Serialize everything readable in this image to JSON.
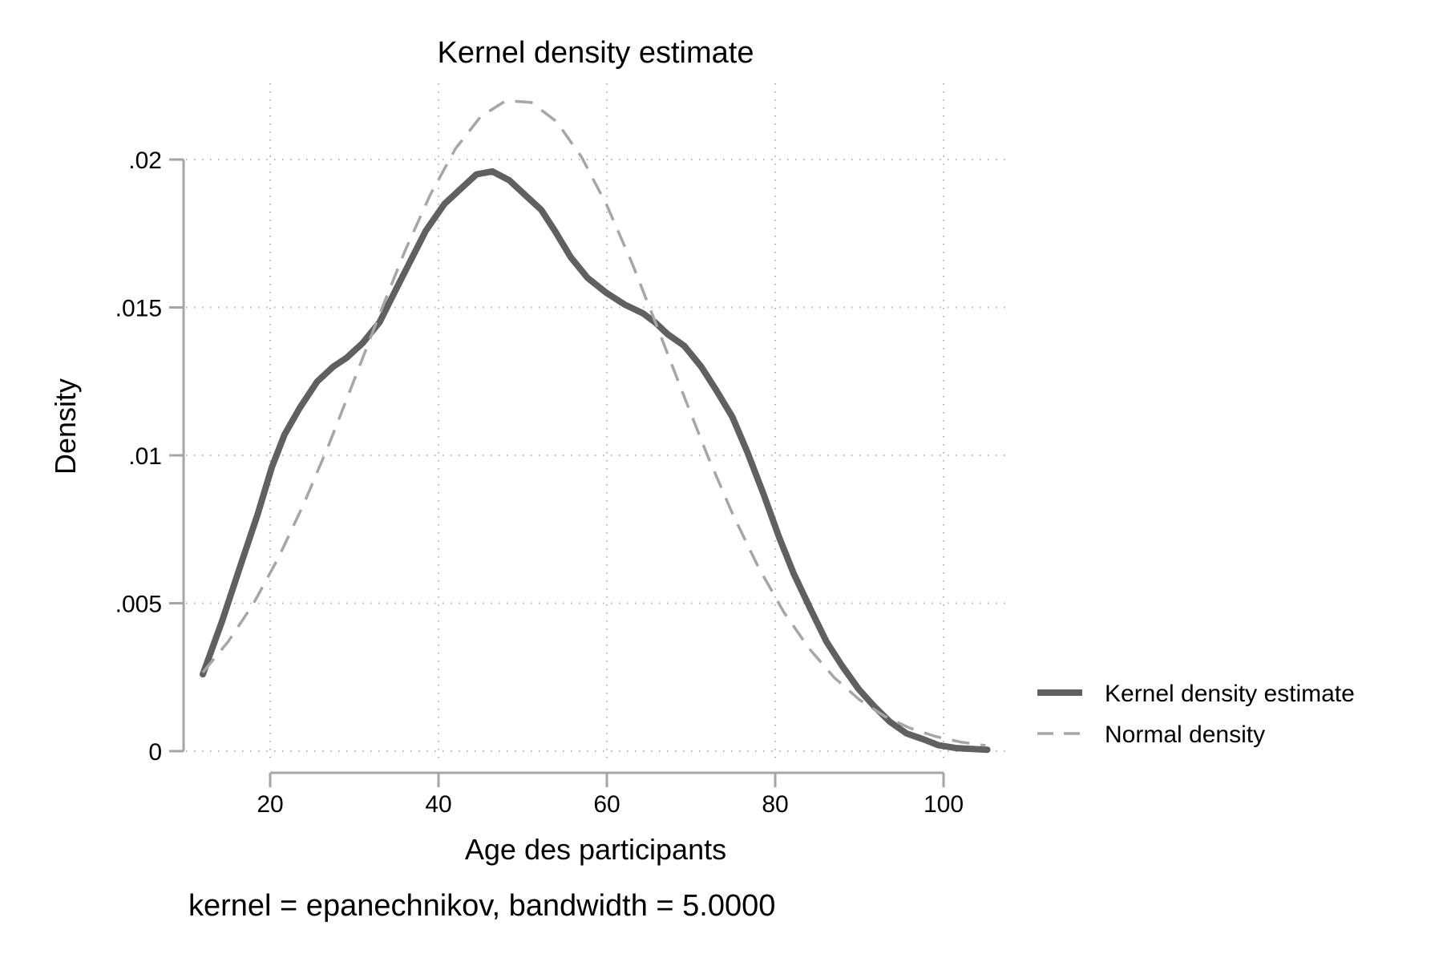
{
  "chart_data": {
    "type": "line",
    "title": "Kernel density estimate",
    "xlabel": "Age des participants",
    "ylabel": "Density",
    "note": "kernel = epanechnikov, bandwidth = 5.0000",
    "xlim": [
      10,
      106
    ],
    "ylim": [
      0,
      0.0235
    ],
    "x_ticks": [
      20,
      40,
      60,
      80,
      100
    ],
    "x_tick_labels": [
      "20",
      "40",
      "60",
      "80",
      "100"
    ],
    "y_ticks": [
      0,
      0.005,
      0.01,
      0.015,
      0.02
    ],
    "y_tick_labels": [
      "0",
      ".005",
      ".01",
      ".015",
      ".02"
    ],
    "grid": true,
    "legend_position": "right",
    "series": [
      {
        "name": "Kernel density estimate",
        "style": "solid",
        "color": "#606060",
        "x": [
          12,
          14.3,
          16.5,
          18.5,
          20.2,
          21.7,
          23.5,
          25.6,
          27.5,
          29.1,
          31,
          33,
          35.1,
          38.5,
          40.7,
          42.6,
          44.5,
          46.4,
          48.4,
          50.3,
          52.2,
          53.8,
          55.7,
          57.7,
          59.9,
          62.1,
          64.3,
          65.7,
          67.2,
          69.2,
          71.2,
          73,
          74.9,
          76.7,
          78.6,
          80.5,
          82.2,
          84.2,
          86.1,
          87.9,
          89.9,
          91.8,
          93.6,
          95.6,
          97.6,
          99.4,
          101.6,
          105.2
        ],
        "y": [
          0.0026,
          0.0044,
          0.0063,
          0.008,
          0.0096,
          0.0107,
          0.0116,
          0.0125,
          0.013,
          0.0133,
          0.0138,
          0.0145,
          0.0157,
          0.0176,
          0.0185,
          0.019,
          0.0195,
          0.0196,
          0.0193,
          0.0188,
          0.0183,
          0.0176,
          0.0167,
          0.016,
          0.0155,
          0.0151,
          0.0148,
          0.0145,
          0.0141,
          0.0137,
          0.013,
          0.0122,
          0.0113,
          0.0101,
          0.0087,
          0.0072,
          0.006,
          0.0048,
          0.0037,
          0.0029,
          0.0021,
          0.0015,
          0.001,
          0.0006,
          0.0004,
          0.0002,
          0.0001,
          5e-05
        ]
      },
      {
        "name": "Normal density",
        "style": "dashed",
        "color": "#a6a6a6",
        "x": [
          12,
          15,
          18,
          21,
          24,
          27,
          30,
          33,
          36,
          39,
          42,
          45,
          48,
          51,
          54,
          57,
          60,
          63,
          66,
          69,
          72,
          75,
          78,
          81,
          84,
          87,
          90,
          93,
          96,
          99,
          102,
          105
        ],
        "y": [
          0.00266,
          0.0037,
          0.00498,
          0.00655,
          0.00836,
          0.01038,
          0.01256,
          0.01477,
          0.0169,
          0.0188,
          0.02036,
          0.02145,
          0.02199,
          0.02193,
          0.02129,
          0.02008,
          0.01845,
          0.01649,
          0.01433,
          0.01212,
          0.00996,
          0.00798,
          0.00622,
          0.00471,
          0.00348,
          0.00249,
          0.00174,
          0.00118,
          0.00078,
          0.0005,
          0.00031,
          0.00019
        ]
      }
    ]
  }
}
